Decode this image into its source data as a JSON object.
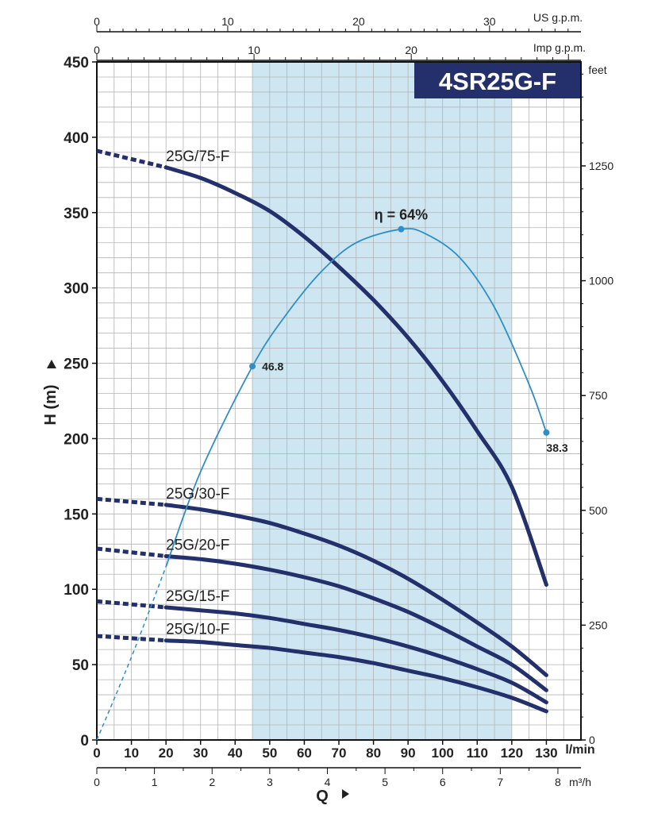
{
  "chart_data": {
    "type": "line",
    "title": "4SR25G-F",
    "y_axis": {
      "label": "H (m)",
      "range": [
        0,
        450
      ],
      "ticks": [
        "0",
        "50",
        "100",
        "150",
        "200",
        "250",
        "300",
        "350",
        "400",
        "450"
      ]
    },
    "x_axis": {
      "unit_label": "l/min",
      "range": [
        0,
        140
      ],
      "ticks": [
        "0",
        "10",
        "20",
        "30",
        "40",
        "50",
        "60",
        "70",
        "80",
        "90",
        "100",
        "110",
        "120",
        "130"
      ]
    },
    "secondary_axes": {
      "us_gpm": {
        "label": "US g.p.m.",
        "ticks": [
          "0",
          "10",
          "20",
          "30"
        ]
      },
      "imp_gpm": {
        "label": "Imp g.p.m.",
        "ticks": [
          "0",
          "10",
          "20"
        ]
      },
      "feet": {
        "label": "feet",
        "ticks": [
          "0",
          "250",
          "500",
          "750",
          "1000",
          "1250"
        ]
      },
      "m3h": {
        "label": "m³/h",
        "ticks": [
          "0",
          "1",
          "2",
          "3",
          "4",
          "5",
          "6",
          "7",
          "8"
        ]
      },
      "q_label": "Q"
    },
    "operating_range_lpm": [
      45,
      120
    ],
    "series": [
      {
        "name": "25G/75-F",
        "x": [
          0,
          20,
          30,
          40,
          50,
          60,
          70,
          80,
          90,
          100,
          110,
          120,
          130
        ],
        "y": [
          391,
          380,
          373,
          363,
          351,
          334,
          314,
          292,
          267,
          238,
          205,
          168,
          103
        ],
        "dashed_until_x": 20
      },
      {
        "name": "25G/30-F",
        "x": [
          0,
          20,
          30,
          40,
          50,
          60,
          70,
          80,
          90,
          100,
          110,
          120,
          130
        ],
        "y": [
          160,
          156,
          153,
          149,
          144,
          137,
          129,
          119,
          107,
          93,
          78,
          62,
          43
        ],
        "dashed_until_x": 20
      },
      {
        "name": "25G/20-F",
        "x": [
          0,
          20,
          30,
          40,
          50,
          60,
          70,
          80,
          90,
          100,
          110,
          120,
          130
        ],
        "y": [
          127,
          122,
          120,
          117,
          113,
          108,
          102,
          94,
          85,
          74,
          62,
          50,
          33
        ],
        "dashed_until_x": 20
      },
      {
        "name": "25G/15-F",
        "x": [
          0,
          20,
          30,
          40,
          50,
          60,
          70,
          80,
          90,
          100,
          110,
          120,
          130
        ],
        "y": [
          92,
          88,
          86,
          84,
          81,
          77,
          73,
          68,
          62,
          55,
          47,
          38,
          25
        ],
        "dashed_until_x": 20
      },
      {
        "name": "25G/10-F",
        "x": [
          0,
          20,
          30,
          40,
          50,
          60,
          70,
          80,
          90,
          100,
          110,
          120,
          130
        ],
        "y": [
          69,
          66,
          65,
          63,
          61,
          58,
          55,
          51,
          46,
          41,
          35,
          28,
          19
        ],
        "dashed_until_x": 20
      }
    ],
    "efficiency": {
      "label": "η = 64%",
      "x": [
        0,
        10,
        20,
        30,
        45,
        55,
        65,
        75,
        88,
        95,
        105,
        115,
        125,
        130
      ],
      "y": [
        0,
        55,
        115,
        178,
        248,
        283,
        311,
        330,
        339,
        336,
        320,
        287,
        236,
        204
      ],
      "dashed_until_x": 20,
      "points": [
        {
          "x": 45,
          "y": 248,
          "label": "46.8"
        },
        {
          "x": 88,
          "y": 339,
          "label": ""
        },
        {
          "x": 130,
          "y": 204,
          "label": "38.3"
        }
      ]
    },
    "colors": {
      "curve": "#23306b",
      "efficiency": "#2e8fc7",
      "band": "#cde6f2",
      "title_bg": "#23306b",
      "grid": "#b4b4b4"
    },
    "grid": true
  }
}
